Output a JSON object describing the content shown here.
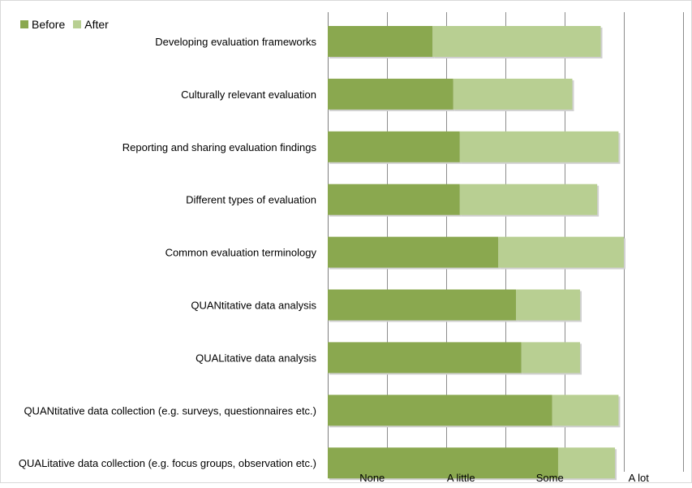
{
  "chart_data": {
    "type": "bar",
    "orientation": "horizontal",
    "stacked": true,
    "categories": [
      "Developing evaluation frameworks",
      "Culturally relevant evaluation",
      "Reporting and sharing evaluation findings",
      "Different types of evaluation",
      "Common evaluation terminology",
      "QUANtitative data analysis",
      "QUALitative data analysis",
      "QUANtitative data collection (e.g. surveys, questionnaires etc.)",
      "QUALitative data collection (e.g. focus groups, observation etc.)"
    ],
    "series": [
      {
        "name": "Before",
        "color": "#8aa84f",
        "values": [
          1.77,
          2.12,
          2.23,
          2.23,
          2.88,
          3.18,
          3.27,
          3.79,
          3.89
        ]
      },
      {
        "name": "After",
        "color": "#b8cf92",
        "values": [
          2.84,
          2.01,
          2.68,
          2.32,
          2.12,
          1.08,
          0.99,
          1.12,
          0.96
        ]
      }
    ],
    "x_ticks": [
      "None",
      "A little",
      "Some",
      "A lot"
    ],
    "xlim": [
      0,
      6
    ],
    "grid": true,
    "legend_position": "top-left"
  }
}
